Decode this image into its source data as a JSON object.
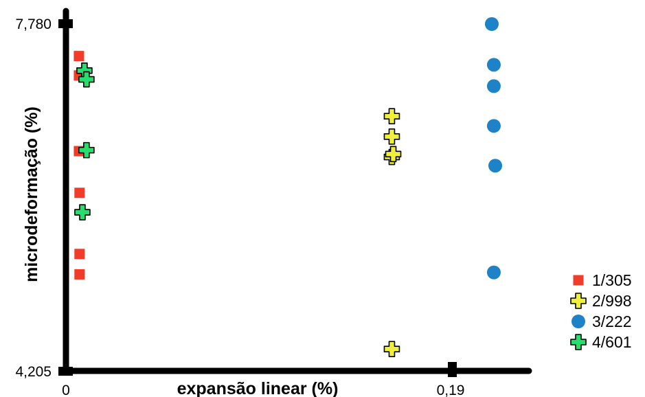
{
  "chart_data": {
    "type": "scatter",
    "title": "",
    "xlabel": "expansão linear (%)",
    "ylabel": "microdeformação (%)",
    "xlim": [
      0,
      0.19
    ],
    "ylim": [
      4.205,
      7.78
    ],
    "x_tick_labels": [
      "0",
      "0,19"
    ],
    "y_tick_labels": [
      "4,205",
      "7,780"
    ],
    "grid": false,
    "legend_position": "right",
    "series": [
      {
        "name": "1/305",
        "marker": "square",
        "color": "#f03c28",
        "points": [
          {
            "x": 0.0064,
            "y": 7.45
          },
          {
            "x": 0.0064,
            "y": 7.25
          },
          {
            "x": 0.0064,
            "y": 6.47
          },
          {
            "x": 0.0067,
            "y": 6.04
          },
          {
            "x": 0.0067,
            "y": 5.41
          },
          {
            "x": 0.0067,
            "y": 5.2
          }
        ]
      },
      {
        "name": "2/998",
        "marker": "plus",
        "color": "#f0f03c",
        "points": [
          {
            "x": 0.1604,
            "y": 6.83
          },
          {
            "x": 0.1604,
            "y": 6.62
          },
          {
            "x": 0.1604,
            "y": 6.41
          },
          {
            "x": 0.1611,
            "y": 6.44
          },
          {
            "x": 0.1604,
            "y": 4.43
          }
        ]
      },
      {
        "name": "3/222",
        "marker": "circle",
        "color": "#1e82c8",
        "points": [
          {
            "x": 0.2096,
            "y": 7.78
          },
          {
            "x": 0.2106,
            "y": 7.36
          },
          {
            "x": 0.2106,
            "y": 7.14
          },
          {
            "x": 0.2106,
            "y": 6.73
          },
          {
            "x": 0.2113,
            "y": 6.32
          },
          {
            "x": 0.2106,
            "y": 5.22
          }
        ]
      },
      {
        "name": "4/601",
        "marker": "plus",
        "color": "#28dc6e",
        "points": [
          {
            "x": 0.0091,
            "y": 7.3
          },
          {
            "x": 0.0101,
            "y": 7.21
          },
          {
            "x": 0.0101,
            "y": 6.48
          },
          {
            "x": 0.0081,
            "y": 5.84
          }
        ]
      }
    ]
  }
}
